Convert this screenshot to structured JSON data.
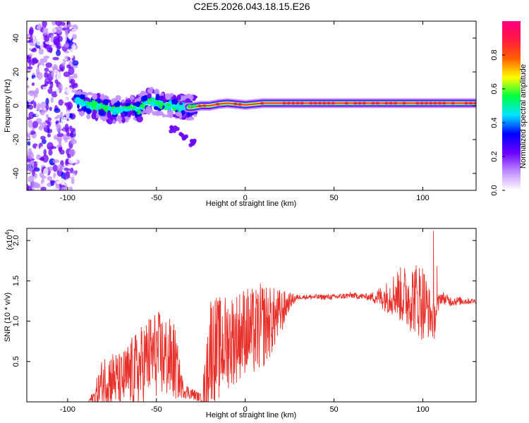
{
  "figure_title": "C2E5.2026.043.18.15.E26",
  "colors": {
    "snr_line": "#e8302a",
    "band_center": "#e8202a",
    "axis": "#000000",
    "colormap": [
      "#ffffff",
      "#c08cff",
      "#6a00ff",
      "#0000ff",
      "#00e5ff",
      "#00ff40",
      "#ffff00",
      "#ff6000",
      "#ff1a40",
      "#ff0080"
    ]
  },
  "chart_data": [
    {
      "id": "spectrogram",
      "type": "heatmap",
      "title": "",
      "xlabel": "Height of straight line (km)",
      "ylabel": "Frequency (Hz)",
      "xlim": [
        -123,
        130
      ],
      "ylim": [
        -50,
        50
      ],
      "xticks": [
        -100,
        -50,
        0,
        50,
        100
      ],
      "xtick_labels": [
        "-100",
        "-50",
        "0",
        "50",
        "100"
      ],
      "yticks": [
        -40,
        -20,
        0,
        20,
        40
      ],
      "ytick_labels": [
        "-40",
        "-20",
        "0",
        "20",
        "40"
      ],
      "colorbar": {
        "label": "Normalized spectral amplitude",
        "range": [
          0.0,
          1.0
        ],
        "ticks": [
          0.0,
          0.2,
          0.4,
          0.6,
          0.8
        ],
        "tick_labels": [
          "0.0",
          "0.2",
          "0.4",
          "0.6",
          "0.8"
        ]
      },
      "description_points": {
        "noise_region_x": [
          -123,
          -95
        ],
        "scatter_region_x": [
          -95,
          -28
        ],
        "band_center_freq": [
          [
            -95,
            3
          ],
          [
            -90,
            1
          ],
          [
            -85,
            0
          ],
          [
            -80,
            -1
          ],
          [
            -75,
            -3
          ],
          [
            -70,
            -2
          ],
          [
            -65,
            -1
          ],
          [
            -60,
            -2
          ],
          [
            -55,
            3
          ],
          [
            -50,
            2
          ],
          [
            -45,
            1
          ],
          [
            -40,
            0
          ],
          [
            -35,
            -1
          ],
          [
            -30,
            -1
          ],
          [
            -25,
            0
          ],
          [
            -20,
            0
          ],
          [
            -15,
            1
          ],
          [
            -10,
            1.5
          ],
          [
            -5,
            1
          ],
          [
            0,
            0.5
          ],
          [
            5,
            1
          ],
          [
            10,
            1.5
          ],
          [
            20,
            1.5
          ],
          [
            30,
            1.5
          ],
          [
            50,
            1.5
          ],
          [
            80,
            1.5
          ],
          [
            100,
            1.5
          ],
          [
            130,
            1.5
          ]
        ],
        "low_freq_tail": [
          [
            -40,
            -14
          ],
          [
            -35,
            -18
          ],
          [
            -30,
            -22
          ]
        ]
      }
    },
    {
      "id": "snr",
      "type": "line",
      "title": "",
      "xlabel": "Height of straight line (km)",
      "ylabel": "SNR (10 * v/v)",
      "scale_note": "(x10",
      "scale_exponent": "4",
      "scale_suffix": ")",
      "xlim": [
        -123,
        130
      ],
      "ylim": [
        0,
        2.15
      ],
      "xticks": [
        -100,
        -50,
        0,
        50,
        100
      ],
      "xtick_labels": [
        "-100",
        "-50",
        "0",
        "50",
        "100"
      ],
      "yticks": [
        0.5,
        1.0,
        1.5,
        2.0
      ],
      "ytick_labels": [
        "0.5",
        "1.0",
        "1.5",
        "2.0"
      ],
      "envelope": [
        [
          -123,
          0.0
        ],
        [
          -90,
          0.0
        ],
        [
          -85,
          0.05
        ],
        [
          -80,
          0.25
        ],
        [
          -75,
          0.3
        ],
        [
          -70,
          0.25
        ],
        [
          -65,
          0.35
        ],
        [
          -60,
          0.4
        ],
        [
          -55,
          0.55
        ],
        [
          -50,
          0.6
        ],
        [
          -45,
          0.55
        ],
        [
          -40,
          0.5
        ],
        [
          -35,
          0.15
        ],
        [
          -30,
          0.1
        ],
        [
          -25,
          0.05
        ],
        [
          -22,
          0.2
        ],
        [
          -20,
          0.7
        ],
        [
          -15,
          0.65
        ],
        [
          -10,
          0.75
        ],
        [
          -5,
          0.8
        ],
        [
          0,
          0.9
        ],
        [
          5,
          0.85
        ],
        [
          10,
          0.95
        ],
        [
          15,
          1.0
        ],
        [
          20,
          1.1
        ],
        [
          25,
          1.25
        ],
        [
          30,
          1.3
        ],
        [
          40,
          1.3
        ],
        [
          50,
          1.3
        ],
        [
          60,
          1.32
        ],
        [
          70,
          1.3
        ],
        [
          80,
          1.3
        ],
        [
          85,
          1.35
        ],
        [
          90,
          1.3
        ],
        [
          95,
          1.3
        ],
        [
          100,
          1.25
        ],
        [
          104,
          1.1
        ],
        [
          106,
          1.0
        ],
        [
          110,
          1.3
        ],
        [
          115,
          1.25
        ],
        [
          120,
          1.25
        ],
        [
          130,
          1.25
        ]
      ],
      "noise_amp": [
        [
          -123,
          0.0
        ],
        [
          -88,
          0.0
        ],
        [
          -80,
          0.35
        ],
        [
          -70,
          0.35
        ],
        [
          -60,
          0.5
        ],
        [
          -50,
          0.55
        ],
        [
          -40,
          0.5
        ],
        [
          -35,
          0.1
        ],
        [
          -25,
          0.05
        ],
        [
          -20,
          0.7
        ],
        [
          -10,
          0.6
        ],
        [
          0,
          0.55
        ],
        [
          10,
          0.55
        ],
        [
          20,
          0.3
        ],
        [
          25,
          0.1
        ],
        [
          30,
          0.03
        ],
        [
          70,
          0.04
        ],
        [
          80,
          0.2
        ],
        [
          90,
          0.4
        ],
        [
          100,
          0.5
        ],
        [
          104,
          0.3
        ],
        [
          110,
          0.08
        ],
        [
          130,
          0.03
        ]
      ],
      "spikes": [
        [
          106,
          2.12
        ],
        [
          106.5,
          0.78
        ],
        [
          108,
          1.68
        ]
      ]
    }
  ]
}
